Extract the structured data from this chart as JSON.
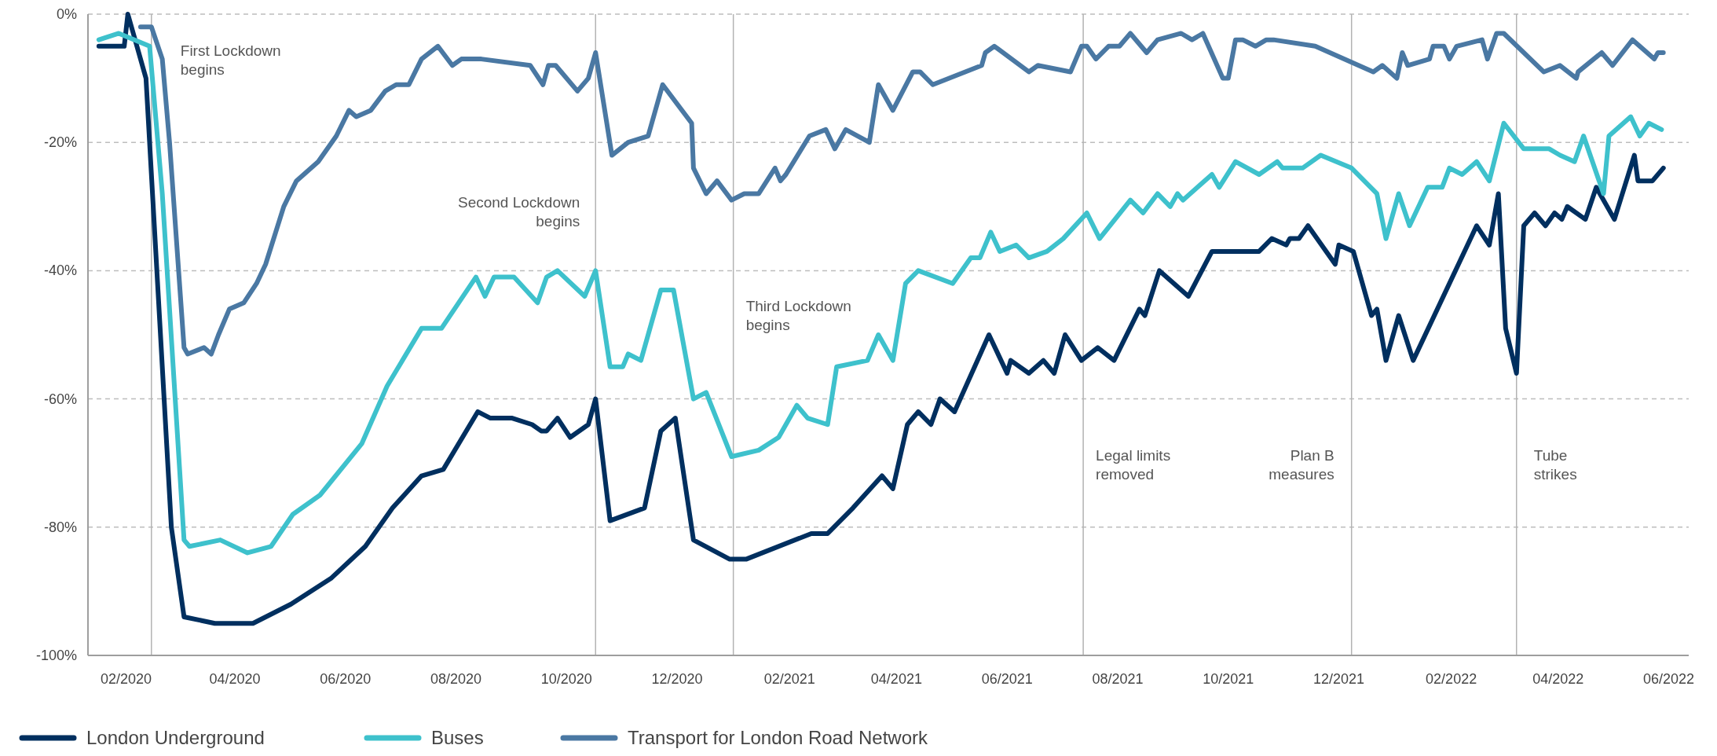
{
  "chart_data": {
    "type": "line",
    "xlim": [
      "2020-01-11",
      "2022-06-12"
    ],
    "ylim": [
      -100,
      0
    ],
    "xticks": [
      {
        "value": "2020-02-01",
        "label": "02/2020"
      },
      {
        "value": "2020-04-01",
        "label": "04/2020"
      },
      {
        "value": "2020-06-01",
        "label": "06/2020"
      },
      {
        "value": "2020-08-01",
        "label": "08/2020"
      },
      {
        "value": "2020-10-01",
        "label": "10/2020"
      },
      {
        "value": "2020-12-01",
        "label": "12/2020"
      },
      {
        "value": "2021-02-01",
        "label": "02/2021"
      },
      {
        "value": "2021-04-01",
        "label": "04/2021"
      },
      {
        "value": "2021-06-01",
        "label": "06/2021"
      },
      {
        "value": "2021-08-01",
        "label": "08/2021"
      },
      {
        "value": "2021-10-01",
        "label": "10/2021"
      },
      {
        "value": "2021-12-01",
        "label": "12/2021"
      },
      {
        "value": "2022-02-01",
        "label": "02/2022"
      },
      {
        "value": "2022-04-01",
        "label": "04/2022"
      },
      {
        "value": "2022-06-01",
        "label": "06/2022"
      }
    ],
    "yticks": [
      {
        "value": 0,
        "label": "0%"
      },
      {
        "value": -20,
        "label": "-20%"
      },
      {
        "value": -40,
        "label": "-40%"
      },
      {
        "value": -60,
        "label": "-60%"
      },
      {
        "value": -80,
        "label": "-80%"
      },
      {
        "value": -100,
        "label": "-100%"
      }
    ],
    "grid": "y",
    "legend": "bottom",
    "line_style": "solid",
    "marker": "none",
    "ref_lines": [
      {
        "axis": "x",
        "value": "2020-02-15",
        "label": "First Lockdown\nbegins",
        "color": "#b3b3b3"
      },
      {
        "axis": "x",
        "value": "2020-10-17",
        "label": "Second Lockdown\nbegins",
        "color": "#b3b3b3"
      },
      {
        "axis": "x",
        "value": "2021-01-01",
        "label": "Third Lockdown\nbegins",
        "color": "#b3b3b3"
      },
      {
        "axis": "x",
        "value": "2021-07-13",
        "label": "Legal limits\nremoved",
        "color": "#b3b3b3"
      },
      {
        "axis": "x",
        "value": "2021-12-08",
        "label": "Plan B\nmeasures",
        "color": "#b3b3b3"
      },
      {
        "axis": "x",
        "value": "2022-03-09",
        "label": "Tube\nstrikes",
        "color": "#b3b3b3"
      }
    ],
    "series": [
      {
        "name": "London Underground",
        "color": "#002f5f",
        "x": [
          "2020-01-17",
          "2020-01-31",
          "2020-02-02",
          "2020-02-12",
          "2020-02-26",
          "2020-03-04",
          "2020-03-21",
          "2020-04-11",
          "2020-05-02",
          "2020-05-24",
          "2020-06-12",
          "2020-06-27",
          "2020-07-13",
          "2020-07-25",
          "2020-08-13",
          "2020-08-20",
          "2020-09-01",
          "2020-09-12",
          "2020-09-17",
          "2020-09-20",
          "2020-09-26",
          "2020-10-03",
          "2020-10-13",
          "2020-10-17",
          "2020-10-25",
          "2020-11-13",
          "2020-11-22",
          "2020-11-30",
          "2020-12-10",
          "2020-12-30",
          "2021-01-08",
          "2021-02-13",
          "2021-02-22",
          "2021-03-08",
          "2021-03-24",
          "2021-03-30",
          "2021-04-07",
          "2021-04-13",
          "2021-04-20",
          "2021-04-25",
          "2021-05-03",
          "2021-05-22",
          "2021-06-01",
          "2021-06-03",
          "2021-06-13",
          "2021-06-21",
          "2021-06-27",
          "2021-07-03",
          "2021-07-12",
          "2021-07-21",
          "2021-07-30",
          "2021-08-13",
          "2021-08-16",
          "2021-08-24",
          "2021-09-09",
          "2021-09-22",
          "2021-10-18",
          "2021-10-25",
          "2021-11-02",
          "2021-11-04",
          "2021-11-09",
          "2021-11-14",
          "2021-11-29",
          "2021-12-01",
          "2021-12-09",
          "2021-12-19",
          "2021-12-22",
          "2021-12-27",
          "2022-01-03",
          "2022-01-11",
          "2022-02-15",
          "2022-02-22",
          "2022-02-27",
          "2022-03-03",
          "2022-03-09",
          "2022-03-13",
          "2022-03-19",
          "2022-03-25",
          "2022-03-30",
          "2022-04-03",
          "2022-04-06",
          "2022-04-16",
          "2022-04-22",
          "2022-05-02",
          "2022-05-13",
          "2022-05-15",
          "2022-05-23",
          "2022-05-29"
        ],
        "values": [
          -5,
          -5,
          0,
          -10,
          -80,
          -94,
          -95,
          -95,
          -92,
          -88,
          -83,
          -77,
          -72,
          -71,
          -62,
          -63,
          -63,
          -64,
          -65,
          -65,
          -63,
          -66,
          -64,
          -60,
          -79,
          -77,
          -65,
          -63,
          -82,
          -85,
          -85,
          -81,
          -81,
          -77,
          -72,
          -74,
          -64,
          -62,
          -64,
          -60,
          -62,
          -50,
          -56,
          -54,
          -56,
          -54,
          -56,
          -50,
          -54,
          -52,
          -54,
          -46,
          -47,
          -40,
          -44,
          -37,
          -37,
          -35,
          -36,
          -35,
          -35,
          -33,
          -39,
          -36,
          -37,
          -47,
          -46,
          -54,
          -47,
          -54,
          -33,
          -36,
          -28,
          -49,
          -56,
          -33,
          -31,
          -33,
          -31,
          -32,
          -30,
          -32,
          -27,
          -32,
          -22,
          -26,
          -26,
          -24
        ]
      },
      {
        "name": "Buses",
        "color": "#3ec1cc",
        "x": [
          "2020-01-17",
          "2020-01-28",
          "2020-02-14",
          "2020-02-21",
          "2020-03-04",
          "2020-03-07",
          "2020-03-24",
          "2020-04-08",
          "2020-04-21",
          "2020-05-03",
          "2020-05-18",
          "2020-06-10",
          "2020-06-24",
          "2020-07-13",
          "2020-07-24",
          "2020-08-12",
          "2020-08-17",
          "2020-08-22",
          "2020-09-02",
          "2020-09-15",
          "2020-09-20",
          "2020-09-26",
          "2020-10-11",
          "2020-10-17",
          "2020-10-25",
          "2020-11-01",
          "2020-11-04",
          "2020-11-11",
          "2020-11-22",
          "2020-11-29",
          "2020-12-10",
          "2020-12-17",
          "2020-12-31",
          "2021-01-15",
          "2021-01-26",
          "2021-02-05",
          "2021-02-11",
          "2021-02-22",
          "2021-02-27",
          "2021-03-16",
          "2021-03-22",
          "2021-03-30",
          "2021-04-06",
          "2021-04-13",
          "2021-05-02",
          "2021-05-12",
          "2021-05-17",
          "2021-05-23",
          "2021-05-28",
          "2021-06-06",
          "2021-06-13",
          "2021-06-23",
          "2021-07-02",
          "2021-07-15",
          "2021-07-22",
          "2021-08-08",
          "2021-08-15",
          "2021-08-23",
          "2021-08-30",
          "2021-09-03",
          "2021-09-06",
          "2021-09-22",
          "2021-09-26",
          "2021-10-05",
          "2021-10-18",
          "2021-10-28",
          "2021-10-31",
          "2021-11-11",
          "2021-11-21",
          "2021-12-08",
          "2021-12-22",
          "2021-12-27",
          "2022-01-03",
          "2022-01-09",
          "2022-01-19",
          "2022-01-27",
          "2022-01-31",
          "2022-02-07",
          "2022-02-15",
          "2022-02-22",
          "2022-03-02",
          "2022-03-13",
          "2022-03-27",
          "2022-04-02",
          "2022-04-10",
          "2022-04-15",
          "2022-04-26",
          "2022-04-29",
          "2022-05-11",
          "2022-05-16",
          "2022-05-21",
          "2022-05-28"
        ],
        "values": [
          -4,
          -3,
          -5,
          -28,
          -82,
          -83,
          -82,
          -84,
          -83,
          -78,
          -75,
          -67,
          -58,
          -49,
          -49,
          -41,
          -44,
          -41,
          -41,
          -45,
          -41,
          -40,
          -44,
          -40,
          -55,
          -55,
          -53,
          -54,
          -43,
          -43,
          -60,
          -59,
          -69,
          -68,
          -66,
          -61,
          -63,
          -64,
          -55,
          -54,
          -50,
          -54,
          -42,
          -40,
          -42,
          -38,
          -38,
          -34,
          -37,
          -36,
          -38,
          -37,
          -35,
          -31,
          -35,
          -29,
          -31,
          -28,
          -30,
          -28,
          -29,
          -25,
          -27,
          -23,
          -25,
          -23,
          -24,
          -24,
          -22,
          -24,
          -28,
          -35,
          -28,
          -33,
          -27,
          -27,
          -24,
          -25,
          -23,
          -26,
          -17,
          -21,
          -21,
          -22,
          -23,
          -19,
          -28,
          -19,
          -16,
          -19,
          -17,
          -18
        ]
      },
      {
        "name": "Transport for London Road Network",
        "color": "#4a78a3",
        "x": [
          "2020-02-09",
          "2020-02-15",
          "2020-02-21",
          "2020-02-25",
          "2020-03-04",
          "2020-03-06",
          "2020-03-15",
          "2020-03-19",
          "2020-03-23",
          "2020-03-29",
          "2020-04-06",
          "2020-04-13",
          "2020-04-18",
          "2020-04-28",
          "2020-05-05",
          "2020-05-17",
          "2020-05-27",
          "2020-06-03",
          "2020-06-07",
          "2020-06-15",
          "2020-06-23",
          "2020-06-29",
          "2020-07-06",
          "2020-07-13",
          "2020-07-22",
          "2020-07-30",
          "2020-08-04",
          "2020-08-15",
          "2020-09-11",
          "2020-09-18",
          "2020-09-21",
          "2020-09-25",
          "2020-10-07",
          "2020-10-13",
          "2020-10-17",
          "2020-10-26",
          "2020-11-04",
          "2020-11-15",
          "2020-11-23",
          "2020-12-09",
          "2020-12-10",
          "2020-12-17",
          "2020-12-23",
          "2020-12-31",
          "2021-01-07",
          "2021-01-15",
          "2021-01-24",
          "2021-01-27",
          "2021-01-30",
          "2021-02-12",
          "2021-02-21",
          "2021-02-26",
          "2021-03-04",
          "2021-03-17",
          "2021-03-22",
          "2021-03-30",
          "2021-04-10",
          "2021-04-14",
          "2021-04-21",
          "2021-05-18",
          "2021-05-20",
          "2021-05-25",
          "2021-06-13",
          "2021-06-18",
          "2021-07-06",
          "2021-07-12",
          "2021-07-15",
          "2021-07-20",
          "2021-07-27",
          "2021-08-02",
          "2021-08-08",
          "2021-08-17",
          "2021-08-23",
          "2021-09-05",
          "2021-09-11",
          "2021-09-17",
          "2021-09-28",
          "2021-10-01",
          "2021-10-05",
          "2021-10-09",
          "2021-10-16",
          "2021-10-22",
          "2021-10-26",
          "2021-11-18",
          "2021-12-20",
          "2021-12-25",
          "2022-01-02",
          "2022-01-05",
          "2022-01-08",
          "2022-01-20",
          "2022-01-22",
          "2022-01-28",
          "2022-01-31",
          "2022-02-04",
          "2022-02-18",
          "2022-02-21",
          "2022-02-26",
          "2022-03-02",
          "2022-03-24",
          "2022-04-02",
          "2022-04-11",
          "2022-04-12",
          "2022-04-25",
          "2022-05-01",
          "2022-05-12",
          "2022-05-24",
          "2022-05-26",
          "2022-05-29"
        ],
        "values": [
          -2,
          -2,
          -7,
          -20,
          -52,
          -53,
          -52,
          -53,
          -50,
          -46,
          -45,
          -42,
          -39,
          -30,
          -26,
          -23,
          -19,
          -15,
          -16,
          -15,
          -12,
          -11,
          -11,
          -7,
          -5,
          -8,
          -7,
          -7,
          -8,
          -11,
          -8,
          -8,
          -12,
          -10,
          -6,
          -22,
          -20,
          -19,
          -11,
          -17,
          -24,
          -28,
          -26,
          -29,
          -28,
          -28,
          -24,
          -26,
          -25,
          -19,
          -18,
          -21,
          -18,
          -20,
          -11,
          -15,
          -9,
          -9,
          -11,
          -8,
          -6,
          -5,
          -9,
          -8,
          -9,
          -5,
          -5,
          -7,
          -5,
          -5,
          -3,
          -6,
          -4,
          -3,
          -4,
          -3,
          -10,
          -10,
          -4,
          -4,
          -5,
          -4,
          -4,
          -5,
          -9,
          -8,
          -10,
          -6,
          -8,
          -7,
          -5,
          -5,
          -7,
          -5,
          -4,
          -7,
          -3,
          -3,
          -9,
          -8,
          -10,
          -9,
          -6,
          -8,
          -4,
          -7,
          -6,
          -6
        ]
      }
    ]
  }
}
